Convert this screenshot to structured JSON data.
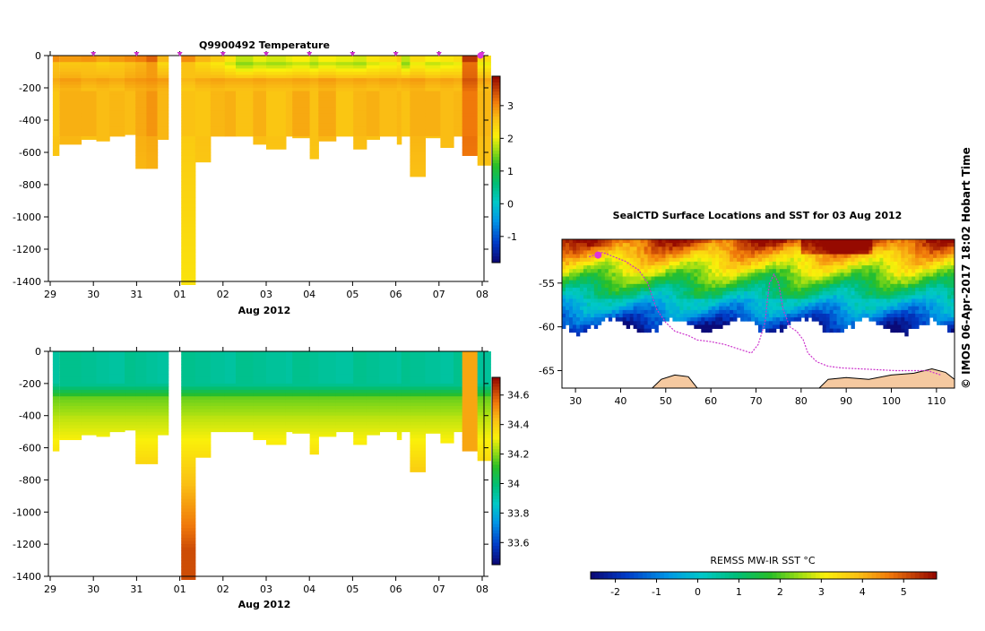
{
  "chart_data": [
    {
      "type": "heatmap",
      "id": "temperature",
      "title": "Q9900492  Temperature",
      "xlabel": "Aug 2012",
      "x_ticks": [
        "29",
        "30",
        "31",
        "01",
        "02",
        "03",
        "04",
        "05",
        "06",
        "07",
        "08"
      ],
      "x_range": [
        0,
        10
      ],
      "y_ticks": [
        "0",
        "-200",
        "-400",
        "-600",
        "-800",
        "-1000",
        "-1200",
        "-1400"
      ],
      "y_range": [
        -1400,
        0
      ],
      "colorbar": {
        "ticks": [
          "3",
          "2",
          "1",
          "0",
          "-1"
        ],
        "range": [
          -1.8,
          3.9
        ]
      },
      "profile_markers": [
        1,
        2,
        3,
        4,
        5,
        6,
        7,
        8,
        9,
        10
      ],
      "profiles": [
        {
          "x": 0.1,
          "w": 0.14,
          "depth": -620,
          "surface": 2.6,
          "thermo": 2.7
        },
        {
          "x": 0.25,
          "w": 0.5,
          "depth": -550,
          "surface": 2.5,
          "thermo": 2.8
        },
        {
          "x": 0.75,
          "w": 0.35,
          "depth": -520,
          "surface": 2.55,
          "thermo": 2.7
        },
        {
          "x": 1.1,
          "w": 0.3,
          "depth": -530,
          "surface": 2.4,
          "thermo": 2.75
        },
        {
          "x": 1.4,
          "w": 0.35,
          "depth": -500,
          "surface": 2.5,
          "thermo": 2.7
        },
        {
          "x": 1.75,
          "w": 0.25,
          "depth": -490,
          "surface": 2.6,
          "thermo": 2.8
        },
        {
          "x": 2.0,
          "w": 0.25,
          "depth": -700,
          "surface": 2.7,
          "thermo": 2.85
        },
        {
          "x": 2.25,
          "w": 0.25,
          "depth": -700,
          "surface": 2.9,
          "thermo": 2.9
        },
        {
          "x": 2.5,
          "w": 0.25,
          "depth": -520,
          "surface": 2.3,
          "thermo": 2.8
        },
        {
          "x": 3.05,
          "w": 0.32,
          "depth": -1420,
          "surface": 2.6,
          "thermo": 2.6
        },
        {
          "x": 3.37,
          "w": 0.35,
          "depth": -660,
          "surface": 2.3,
          "thermo": 2.7
        },
        {
          "x": 3.72,
          "w": 0.33,
          "depth": -500,
          "surface": 2.1,
          "thermo": 2.75
        },
        {
          "x": 4.05,
          "w": 0.25,
          "depth": -500,
          "surface": 1.8,
          "thermo": 2.7
        },
        {
          "x": 4.3,
          "w": 0.4,
          "depth": -500,
          "surface": 1.4,
          "thermo": 2.7
        },
        {
          "x": 4.7,
          "w": 0.3,
          "depth": -550,
          "surface": 1.6,
          "thermo": 2.75
        },
        {
          "x": 5.0,
          "w": 0.45,
          "depth": -580,
          "surface": 1.5,
          "thermo": 2.7
        },
        {
          "x": 5.45,
          "w": 0.15,
          "depth": -500,
          "surface": 1.6,
          "thermo": 2.7
        },
        {
          "x": 5.6,
          "w": 0.4,
          "depth": -510,
          "surface": 1.7,
          "thermo": 2.75
        },
        {
          "x": 6.0,
          "w": 0.2,
          "depth": -640,
          "surface": 1.5,
          "thermo": 2.7
        },
        {
          "x": 6.2,
          "w": 0.4,
          "depth": -530,
          "surface": 1.7,
          "thermo": 2.8
        },
        {
          "x": 6.6,
          "w": 0.4,
          "depth": -500,
          "surface": 1.6,
          "thermo": 2.7
        },
        {
          "x": 7.0,
          "w": 0.3,
          "depth": -580,
          "surface": 1.5,
          "thermo": 2.75
        },
        {
          "x": 7.3,
          "w": 0.3,
          "depth": -520,
          "surface": 1.8,
          "thermo": 2.7
        },
        {
          "x": 7.6,
          "w": 0.4,
          "depth": -500,
          "surface": 1.9,
          "thermo": 2.75
        },
        {
          "x": 8.0,
          "w": 0.1,
          "depth": -550,
          "surface": 2.1,
          "thermo": 2.7
        },
        {
          "x": 8.1,
          "w": 0.2,
          "depth": -500,
          "surface": 1.4,
          "thermo": 2.75
        },
        {
          "x": 8.3,
          "w": 0.35,
          "depth": -750,
          "surface": 1.9,
          "thermo": 2.8
        },
        {
          "x": 8.65,
          "w": 0.35,
          "depth": -510,
          "surface": 1.7,
          "thermo": 2.7
        },
        {
          "x": 9.0,
          "w": 0.3,
          "depth": -570,
          "surface": 1.8,
          "thermo": 2.75
        },
        {
          "x": 9.3,
          "w": 0.2,
          "depth": -500,
          "surface": 1.9,
          "thermo": 2.7
        },
        {
          "x": 9.5,
          "w": 0.35,
          "depth": -620,
          "surface": 3.2,
          "thermo": 3.3
        },
        {
          "x": 9.85,
          "w": 0.3,
          "depth": -680,
          "surface": 1.9,
          "thermo": 2.75
        }
      ]
    },
    {
      "type": "heatmap",
      "id": "salinity",
      "title": "",
      "xlabel": "Aug 2012",
      "x_ticks": [
        "29",
        "30",
        "31",
        "01",
        "02",
        "03",
        "04",
        "05",
        "06",
        "07",
        "08"
      ],
      "x_range": [
        0,
        10
      ],
      "y_ticks": [
        "0",
        "-200",
        "-400",
        "-600",
        "-800",
        "-1000",
        "-1200",
        "-1400"
      ],
      "y_range": [
        -1400,
        0
      ],
      "colorbar": {
        "ticks": [
          "34.6",
          "34.4",
          "34.2",
          "34",
          "33.8",
          "33.6"
        ],
        "range": [
          33.45,
          34.72
        ]
      },
      "profiles_ref": "temperature"
    },
    {
      "type": "map",
      "id": "sst_map",
      "title": "SealCTD Surface Locations and SST for 03 Aug 2012",
      "x_ticks": [
        "30",
        "40",
        "50",
        "60",
        "70",
        "80",
        "90",
        "100",
        "110"
      ],
      "x_range": [
        27,
        114
      ],
      "y_ticks": [
        "-55",
        "-60",
        "-65"
      ],
      "y_range": [
        -67,
        -50
      ],
      "track": [
        [
          33,
          -52
        ],
        [
          36,
          -51.5
        ],
        [
          41,
          -52.5
        ],
        [
          44,
          -53.5
        ],
        [
          46,
          -55
        ],
        [
          47,
          -56.5
        ],
        [
          48,
          -58
        ],
        [
          50,
          -59.5
        ],
        [
          52,
          -60.5
        ],
        [
          55,
          -61
        ],
        [
          57,
          -61.5
        ],
        [
          60,
          -61.7
        ],
        [
          63,
          -62
        ],
        [
          66,
          -62.5
        ],
        [
          69,
          -63
        ],
        [
          70.5,
          -62
        ],
        [
          72,
          -59.5
        ],
        [
          72.5,
          -57
        ],
        [
          73,
          -55
        ],
        [
          74,
          -54
        ],
        [
          75,
          -55
        ],
        [
          76,
          -58
        ],
        [
          77.5,
          -60
        ],
        [
          79,
          -60.5
        ],
        [
          80.5,
          -61.5
        ],
        [
          81.5,
          -63
        ],
        [
          83.5,
          -64
        ],
        [
          86,
          -64.5
        ],
        [
          89,
          -64.7
        ],
        [
          93,
          -64.8
        ],
        [
          97,
          -64.9
        ],
        [
          101,
          -65
        ],
        [
          104.5,
          -65
        ],
        [
          108,
          -65
        ],
        [
          111,
          -65.5
        ]
      ]
    },
    {
      "type": "colorbar",
      "id": "sst_colorbar",
      "label": "REMSS MW-IR SST °C",
      "ticks": [
        "-2",
        "-1",
        "0",
        "1",
        "2",
        "3",
        "4",
        "5"
      ],
      "range": [
        -2.6,
        5.8
      ]
    }
  ],
  "credit": "© IMOS 06-Apr-2017 18:02 Hobart Time"
}
